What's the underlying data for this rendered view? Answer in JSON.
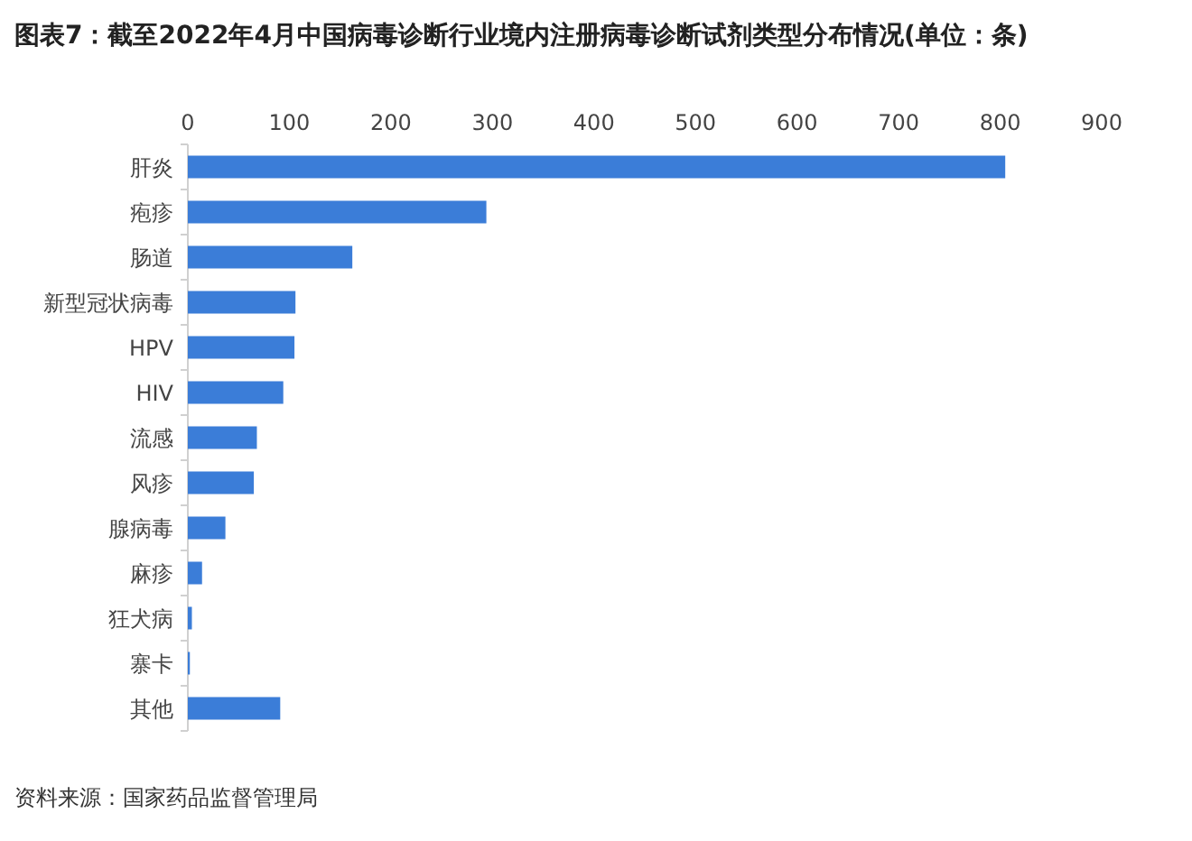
{
  "chart_data": {
    "type": "bar",
    "orientation": "horizontal",
    "title": "图表7：截至2022年4月中国病毒诊断行业境内注册病毒诊断试剂类型分布情况(单位：条)",
    "categories": [
      "肝炎",
      "疱疹",
      "肠道",
      "新型冠状病毒",
      "HPV",
      "HIV",
      "流感",
      "风疹",
      "腺病毒",
      "麻疹",
      "狂犬病",
      "寨卡",
      "其他"
    ],
    "values": [
      805,
      294,
      162,
      106,
      105,
      94,
      68,
      65,
      37,
      14,
      4,
      2,
      91
    ],
    "color": "#3b7dd8",
    "xlim": [
      0,
      900
    ],
    "xticks": [
      0,
      100,
      200,
      300,
      400,
      500,
      600,
      700,
      800,
      900
    ],
    "grid": false,
    "annotations": [
      "资料来源：国家药品监督管理局"
    ]
  }
}
